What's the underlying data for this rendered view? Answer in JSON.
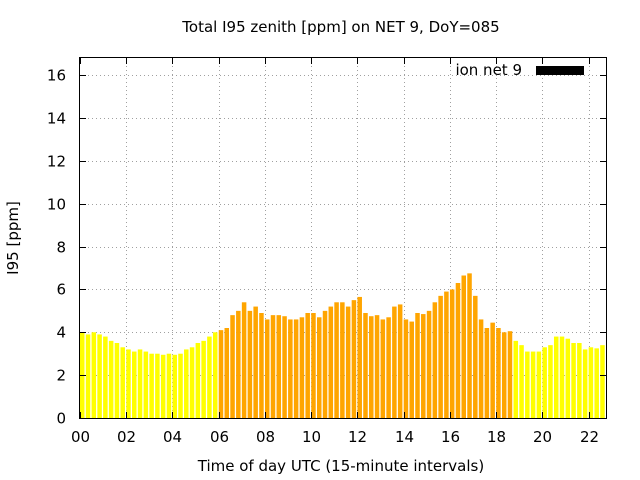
{
  "chart_data": {
    "type": "bar",
    "title": "Total I95 zenith [ppm] on NET 9, DoY=085",
    "xlabel": "Time of day UTC (15-minute intervals)",
    "ylabel": "I95 [ppm]",
    "ylim": [
      0,
      16.8
    ],
    "xlim": [
      0,
      22.75
    ],
    "bin_hours": 0.25,
    "yticks": [
      "0",
      "2",
      "4",
      "6",
      "8",
      "10",
      "12",
      "14",
      "16"
    ],
    "xticks": [
      "00",
      "02",
      "04",
      "06",
      "08",
      "10",
      "12",
      "14",
      "16",
      "18",
      "20",
      "22"
    ],
    "grid": true,
    "legend": {
      "label": "ion net 9",
      "color": "#000000",
      "placement": "top-right"
    },
    "colors": {
      "night": "#ffff00",
      "day": "#ffa500"
    },
    "series": [
      {
        "name": "ion net 9",
        "x": [
          0.0,
          0.25,
          0.5,
          0.75,
          1.0,
          1.25,
          1.5,
          1.75,
          2.0,
          2.25,
          2.5,
          2.75,
          3.0,
          3.25,
          3.5,
          3.75,
          4.0,
          4.25,
          4.5,
          4.75,
          5.0,
          5.25,
          5.5,
          5.75,
          6.0,
          6.25,
          6.5,
          6.75,
          7.0,
          7.25,
          7.5,
          7.75,
          8.0,
          8.25,
          8.5,
          8.75,
          9.0,
          9.25,
          9.5,
          9.75,
          10.0,
          10.25,
          10.5,
          10.75,
          11.0,
          11.25,
          11.5,
          11.75,
          12.0,
          12.25,
          12.5,
          12.75,
          13.0,
          13.25,
          13.5,
          13.75,
          14.0,
          14.25,
          14.5,
          14.75,
          15.0,
          15.25,
          15.5,
          15.75,
          16.0,
          16.25,
          16.5,
          16.75,
          17.0,
          17.25,
          17.5,
          17.75,
          18.0,
          18.25,
          18.5,
          18.75,
          19.0,
          19.25,
          19.5,
          19.75,
          20.0,
          20.25,
          20.5,
          20.75,
          21.0,
          21.25,
          21.5,
          21.75,
          22.0,
          22.25,
          22.5
        ],
        "values": [
          4.0,
          3.9,
          4.0,
          3.9,
          3.8,
          3.6,
          3.5,
          3.3,
          3.2,
          3.1,
          3.2,
          3.1,
          3.0,
          3.0,
          2.95,
          3.0,
          2.95,
          3.0,
          3.2,
          3.3,
          3.5,
          3.6,
          3.8,
          4.0,
          4.1,
          4.2,
          4.8,
          5.0,
          5.4,
          5.0,
          5.2,
          4.9,
          4.6,
          4.8,
          4.8,
          4.75,
          4.6,
          4.6,
          4.7,
          4.9,
          4.9,
          4.7,
          5.0,
          5.2,
          5.4,
          5.4,
          5.2,
          5.5,
          5.65,
          4.9,
          4.75,
          4.8,
          4.6,
          4.7,
          5.2,
          5.3,
          4.6,
          4.5,
          4.9,
          4.85,
          5.0,
          5.4,
          5.7,
          5.9,
          6.0,
          6.3,
          6.65,
          6.75,
          5.7,
          4.6,
          4.2,
          4.45,
          4.2,
          4.0,
          4.05,
          3.6,
          3.4,
          3.1,
          3.1,
          3.1,
          3.3,
          3.4,
          3.8,
          3.8,
          3.7,
          3.5,
          3.5,
          3.2,
          3.3,
          3.25,
          3.4
        ],
        "day_flags": [
          0,
          0,
          0,
          0,
          0,
          0,
          0,
          0,
          0,
          0,
          0,
          0,
          0,
          0,
          0,
          0,
          0,
          0,
          0,
          0,
          0,
          0,
          0,
          0,
          1,
          1,
          1,
          1,
          1,
          1,
          1,
          1,
          1,
          1,
          1,
          1,
          1,
          1,
          1,
          1,
          1,
          1,
          1,
          1,
          1,
          1,
          1,
          1,
          1,
          1,
          1,
          1,
          1,
          1,
          1,
          1,
          1,
          1,
          1,
          1,
          1,
          1,
          1,
          1,
          1,
          1,
          1,
          1,
          1,
          1,
          1,
          1,
          1,
          1,
          1,
          0,
          0,
          0,
          0,
          0,
          0,
          0,
          0,
          0,
          0,
          0,
          0,
          0,
          0,
          0,
          0
        ]
      }
    ]
  }
}
